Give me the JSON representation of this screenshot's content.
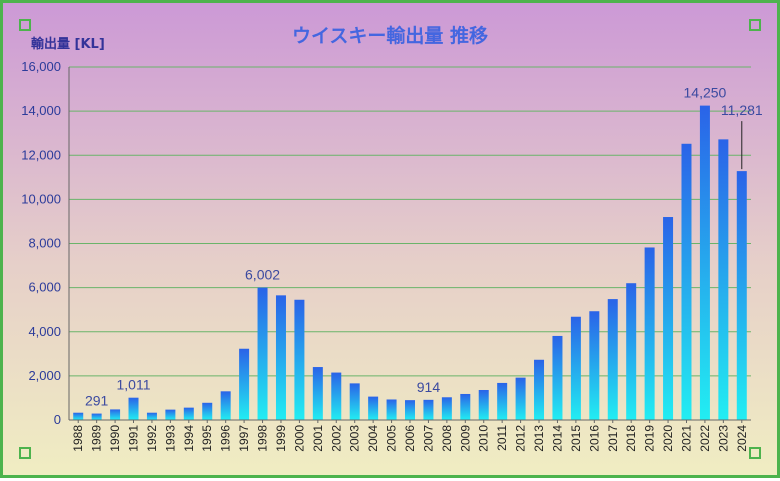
{
  "chart_data": {
    "type": "bar",
    "title": "ウイスキー輸出量 推移",
    "ylabel": "輸出量 [KL]",
    "xlabel": "",
    "ylim": [
      0,
      16000
    ],
    "yticks": [
      0,
      2000,
      4000,
      6000,
      8000,
      10000,
      12000,
      14000,
      16000
    ],
    "ytick_labels": [
      "0",
      "2,000",
      "4,000",
      "6,000",
      "8,000",
      "10,000",
      "12,000",
      "14,000",
      "16,000"
    ],
    "grid": true,
    "categories": [
      "1988",
      "1989",
      "1990",
      "1991",
      "1992",
      "1993",
      "1994",
      "1995",
      "1996",
      "1997",
      "1998",
      "1999",
      "2000",
      "2001",
      "2002",
      "2003",
      "2004",
      "2005",
      "2006",
      "2007",
      "2008",
      "2009",
      "2010",
      "2011",
      "2012",
      "2013",
      "2014",
      "2015",
      "2016",
      "2017",
      "2018",
      "2019",
      "2020",
      "2021",
      "2022",
      "2023",
      "2024"
    ],
    "values": [
      330,
      291,
      480,
      1011,
      330,
      470,
      560,
      780,
      1300,
      3230,
      6002,
      5650,
      5450,
      2400,
      2150,
      1660,
      1060,
      930,
      900,
      914,
      1030,
      1180,
      1360,
      1680,
      1920,
      2730,
      3810,
      4680,
      4930,
      5480,
      6200,
      7820,
      9200,
      12520,
      14250,
      12720,
      11281
    ],
    "data_labels": [
      {
        "category": "1989",
        "text": "291"
      },
      {
        "category": "1991",
        "text": "1,011"
      },
      {
        "category": "1998",
        "text": "6,002"
      },
      {
        "category": "2007",
        "text": "914"
      },
      {
        "category": "2022",
        "text": "14,250"
      },
      {
        "category": "2024",
        "text": "11,281"
      }
    ],
    "colors": {
      "bar_top": "#2a63e8",
      "bar_bottom": "#22eef2",
      "grid": "#6ab46a",
      "axis": "#666666",
      "frame": "#4db34d"
    }
  }
}
